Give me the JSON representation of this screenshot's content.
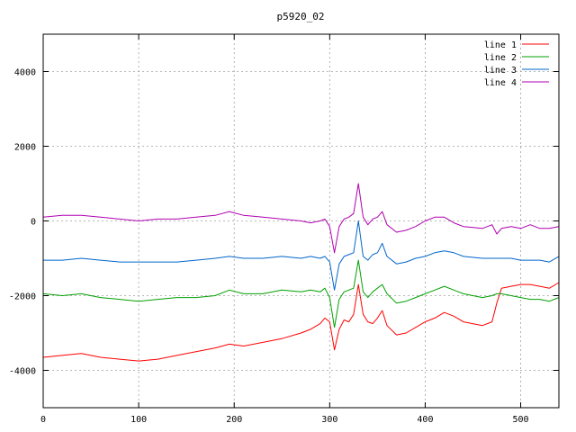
{
  "chart_data": {
    "type": "line",
    "title": "p5920_02",
    "xlabel": "",
    "ylabel": "",
    "xlim": [
      0,
      540
    ],
    "ylim": [
      -5000,
      5000
    ],
    "xticks": [
      0,
      100,
      200,
      300,
      400,
      500
    ],
    "yticks": [
      -4000,
      -2000,
      0,
      2000,
      4000
    ],
    "grid": true,
    "legend_position": "top-right",
    "x": [
      0,
      20,
      40,
      60,
      80,
      100,
      120,
      140,
      160,
      180,
      195,
      210,
      230,
      250,
      270,
      280,
      290,
      295,
      300,
      305,
      310,
      315,
      320,
      325,
      330,
      335,
      340,
      345,
      350,
      355,
      360,
      370,
      380,
      390,
      400,
      410,
      420,
      430,
      440,
      460,
      470,
      475,
      480,
      490,
      500,
      510,
      520,
      530,
      540
    ],
    "series": [
      {
        "name": "line 1",
        "color": "#ff0000",
        "values": [
          -3650,
          -3600,
          -3550,
          -3650,
          -3700,
          -3750,
          -3700,
          -3600,
          -3500,
          -3400,
          -3300,
          -3350,
          -3250,
          -3150,
          -3000,
          -2900,
          -2750,
          -2600,
          -2700,
          -3450,
          -2900,
          -2650,
          -2700,
          -2500,
          -1700,
          -2500,
          -2700,
          -2750,
          -2600,
          -2400,
          -2800,
          -3050,
          -3000,
          -2850,
          -2700,
          -2600,
          -2450,
          -2550,
          -2700,
          -2800,
          -2700,
          -2200,
          -1800,
          -1750,
          -1700,
          -1700,
          -1750,
          -1800,
          -1650
        ]
      },
      {
        "name": "line 2",
        "color": "#00a000",
        "values": [
          -1950,
          -2000,
          -1950,
          -2050,
          -2100,
          -2150,
          -2100,
          -2050,
          -2050,
          -2000,
          -1850,
          -1950,
          -1950,
          -1850,
          -1900,
          -1850,
          -1900,
          -1800,
          -2050,
          -2850,
          -2100,
          -1900,
          -1850,
          -1800,
          -1050,
          -1900,
          -2050,
          -1900,
          -1800,
          -1700,
          -1950,
          -2200,
          -2150,
          -2050,
          -1950,
          -1850,
          -1750,
          -1850,
          -1950,
          -2050,
          -2000,
          -1950,
          -1950,
          -2000,
          -2050,
          -2100,
          -2100,
          -2150,
          -2050
        ]
      },
      {
        "name": "line 3",
        "color": "#0066cc",
        "values": [
          -1050,
          -1050,
          -1000,
          -1050,
          -1100,
          -1100,
          -1100,
          -1100,
          -1050,
          -1000,
          -950,
          -1000,
          -1000,
          -950,
          -1000,
          -950,
          -1000,
          -950,
          -1100,
          -1850,
          -1150,
          -950,
          -900,
          -850,
          0,
          -950,
          -1050,
          -900,
          -850,
          -600,
          -950,
          -1150,
          -1100,
          -1000,
          -950,
          -850,
          -800,
          -850,
          -950,
          -1000,
          -1000,
          -1000,
          -1000,
          -1000,
          -1050,
          -1050,
          -1050,
          -1100,
          -950
        ]
      },
      {
        "name": "line 4",
        "color": "#b000b0",
        "values": [
          100,
          150,
          150,
          100,
          50,
          0,
          50,
          50,
          100,
          150,
          250,
          150,
          100,
          50,
          0,
          -50,
          0,
          50,
          -150,
          -850,
          -150,
          50,
          100,
          200,
          1000,
          100,
          -100,
          50,
          100,
          250,
          -100,
          -300,
          -250,
          -150,
          0,
          100,
          100,
          -50,
          -150,
          -200,
          -100,
          -350,
          -200,
          -150,
          -200,
          -100,
          -200,
          -200,
          -150
        ]
      }
    ]
  }
}
